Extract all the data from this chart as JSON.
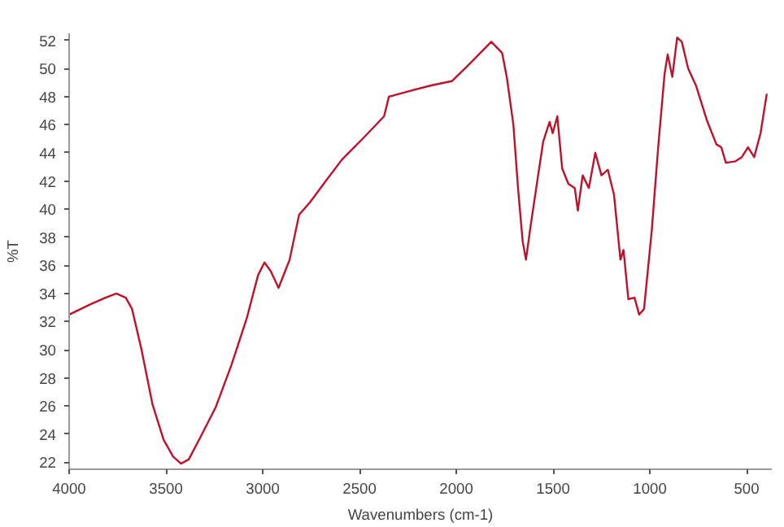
{
  "chart_data": {
    "type": "line",
    "xlabel": "Wavenumbers (cm-1)",
    "ylabel": "%T",
    "x": [
      4000,
      3894,
      3813,
      3756,
      3707,
      3675,
      3626,
      3569,
      3512,
      3463,
      3422,
      3382,
      3325,
      3243,
      3162,
      3081,
      3024,
      2991,
      2959,
      2918,
      2861,
      2812,
      2755,
      2674,
      2592,
      2470,
      2373,
      2348,
      2267,
      2129,
      2023,
      1941,
      1819,
      1763,
      1738,
      1705,
      1681,
      1657,
      1640,
      1616,
      1575,
      1551,
      1518,
      1502,
      1478,
      1453,
      1421,
      1388,
      1372,
      1347,
      1315,
      1282,
      1250,
      1217,
      1185,
      1152,
      1136,
      1111,
      1079,
      1055,
      1030,
      990,
      957,
      924,
      908,
      884,
      859,
      835,
      802,
      762,
      705,
      656,
      631,
      607,
      558,
      525,
      493,
      461,
      428,
      396
    ],
    "series": [
      {
        "color": "#c0102a",
        "values": [
          32.5,
          33.2,
          33.7,
          34.0,
          33.7,
          32.9,
          30.0,
          26.1,
          23.6,
          22.4,
          21.9,
          22.2,
          23.7,
          25.9,
          28.9,
          32.3,
          35.3,
          36.2,
          35.6,
          34.4,
          36.4,
          39.6,
          40.5,
          42.0,
          43.5,
          45.2,
          46.6,
          48.0,
          48.3,
          48.8,
          49.1,
          50.2,
          51.9,
          51.1,
          49.3,
          46.0,
          41.5,
          37.7,
          36.4,
          38.8,
          42.6,
          44.8,
          46.2,
          45.4,
          46.6,
          42.9,
          41.8,
          41.5,
          39.9,
          42.4,
          41.5,
          44.0,
          42.4,
          42.8,
          41.0,
          36.4,
          37.1,
          33.6,
          33.7,
          32.5,
          32.9,
          38.5,
          44.4,
          49.6,
          51.0,
          49.4,
          52.2,
          51.9,
          50.0,
          48.8,
          46.3,
          44.6,
          44.4,
          43.3,
          43.4,
          43.7,
          44.4,
          43.7,
          45.4,
          48.2
        ]
      }
    ],
    "xlim": [
      4000,
      370
    ],
    "ylim": [
      21.5,
      52.5
    ],
    "xticks": [
      4000,
      3500,
      3000,
      2500,
      2000,
      1500,
      1000,
      500
    ],
    "yticks": [
      22,
      24,
      26,
      28,
      30,
      32,
      34,
      36,
      38,
      40,
      42,
      44,
      46,
      48,
      50,
      52
    ],
    "grid": false,
    "marker": "none",
    "line_style": "solid"
  }
}
